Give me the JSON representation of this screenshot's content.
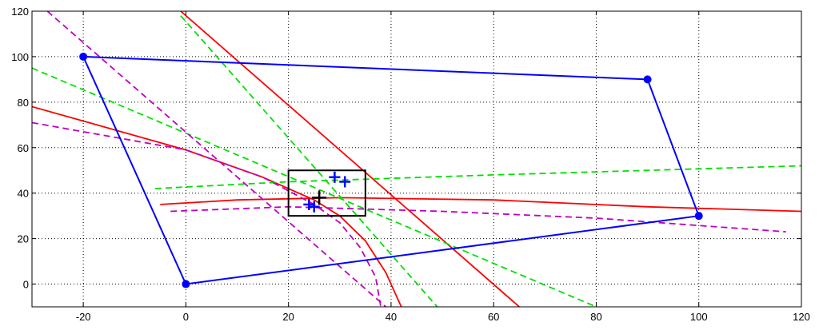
{
  "chart_data": {
    "type": "line",
    "title": "",
    "xlabel": "",
    "ylabel": "",
    "xlim": [
      -30,
      120
    ],
    "ylim": [
      -10,
      120
    ],
    "grid": true,
    "x_ticks": [
      -20,
      0,
      20,
      40,
      60,
      80,
      100,
      120
    ],
    "y_ticks": [
      0,
      20,
      40,
      60,
      80,
      100,
      120
    ],
    "x_tick_labels": [
      "-20",
      "0",
      "20",
      "40",
      "60",
      "80",
      "100",
      "120"
    ],
    "y_tick_labels": [
      "0",
      "20",
      "40",
      "60",
      "80",
      "100",
      "120"
    ],
    "colors": {
      "polygon": "#0000ff",
      "red": "#ff0000",
      "green": "#00e000",
      "magenta": "#bf00bf",
      "box": "#000000",
      "estimate": "#000000",
      "grid": "#000000"
    },
    "series": [
      {
        "style": "solid",
        "color": "red",
        "points": [
          [
            -1,
            120
          ],
          [
            65,
            -10
          ]
        ]
      },
      {
        "style": "solid",
        "color": "red",
        "points": [
          [
            -30,
            78
          ],
          [
            0,
            59
          ],
          [
            15,
            47
          ],
          [
            25,
            37
          ],
          [
            30,
            30
          ],
          [
            35,
            19
          ],
          [
            39,
            5
          ],
          [
            41,
            -5
          ],
          [
            42,
            -10
          ]
        ]
      },
      {
        "style": "solid",
        "color": "red",
        "points": [
          [
            -5,
            35
          ],
          [
            10,
            37
          ],
          [
            30,
            38
          ],
          [
            60,
            37
          ],
          [
            90,
            34
          ],
          [
            120,
            32
          ]
        ]
      },
      {
        "style": "dashed",
        "color": "green",
        "points": [
          [
            -1,
            118
          ],
          [
            49,
            -10
          ]
        ]
      },
      {
        "style": "dashed",
        "color": "green",
        "points": [
          [
            -30,
            95
          ],
          [
            80,
            -10
          ]
        ]
      },
      {
        "style": "dashed",
        "color": "green",
        "points": [
          [
            -6,
            42
          ],
          [
            20,
            45
          ],
          [
            60,
            48
          ],
          [
            90,
            50
          ],
          [
            120,
            52
          ]
        ]
      },
      {
        "style": "dashed",
        "color": "magenta",
        "points": [
          [
            -27,
            120
          ],
          [
            39,
            -10
          ]
        ]
      },
      {
        "style": "dashed",
        "color": "magenta",
        "points": [
          [
            -30,
            71
          ],
          [
            0,
            59
          ],
          [
            15,
            47
          ],
          [
            25,
            35
          ],
          [
            30,
            27
          ],
          [
            34,
            16
          ],
          [
            37,
            3
          ],
          [
            38,
            -10
          ]
        ]
      },
      {
        "style": "dashed",
        "color": "magenta",
        "points": [
          [
            -3,
            32
          ],
          [
            20,
            34
          ],
          [
            50,
            32
          ],
          [
            80,
            29
          ],
          [
            117,
            23
          ]
        ]
      }
    ],
    "polygon": {
      "color": "polygon",
      "points": [
        [
          -20,
          100
        ],
        [
          90,
          90
        ],
        [
          100,
          30
        ],
        [
          0,
          0
        ]
      ]
    },
    "box": {
      "x": [
        20,
        35
      ],
      "y": [
        30,
        50
      ],
      "color": "box"
    },
    "plus_markers": [
      {
        "x": 29,
        "y": 47,
        "color": "polygon"
      },
      {
        "x": 31,
        "y": 45,
        "color": "polygon"
      },
      {
        "x": 24,
        "y": 35,
        "color": "polygon"
      },
      {
        "x": 25,
        "y": 34,
        "color": "polygon"
      },
      {
        "x": 26,
        "y": 38,
        "color": "estimate"
      }
    ]
  }
}
